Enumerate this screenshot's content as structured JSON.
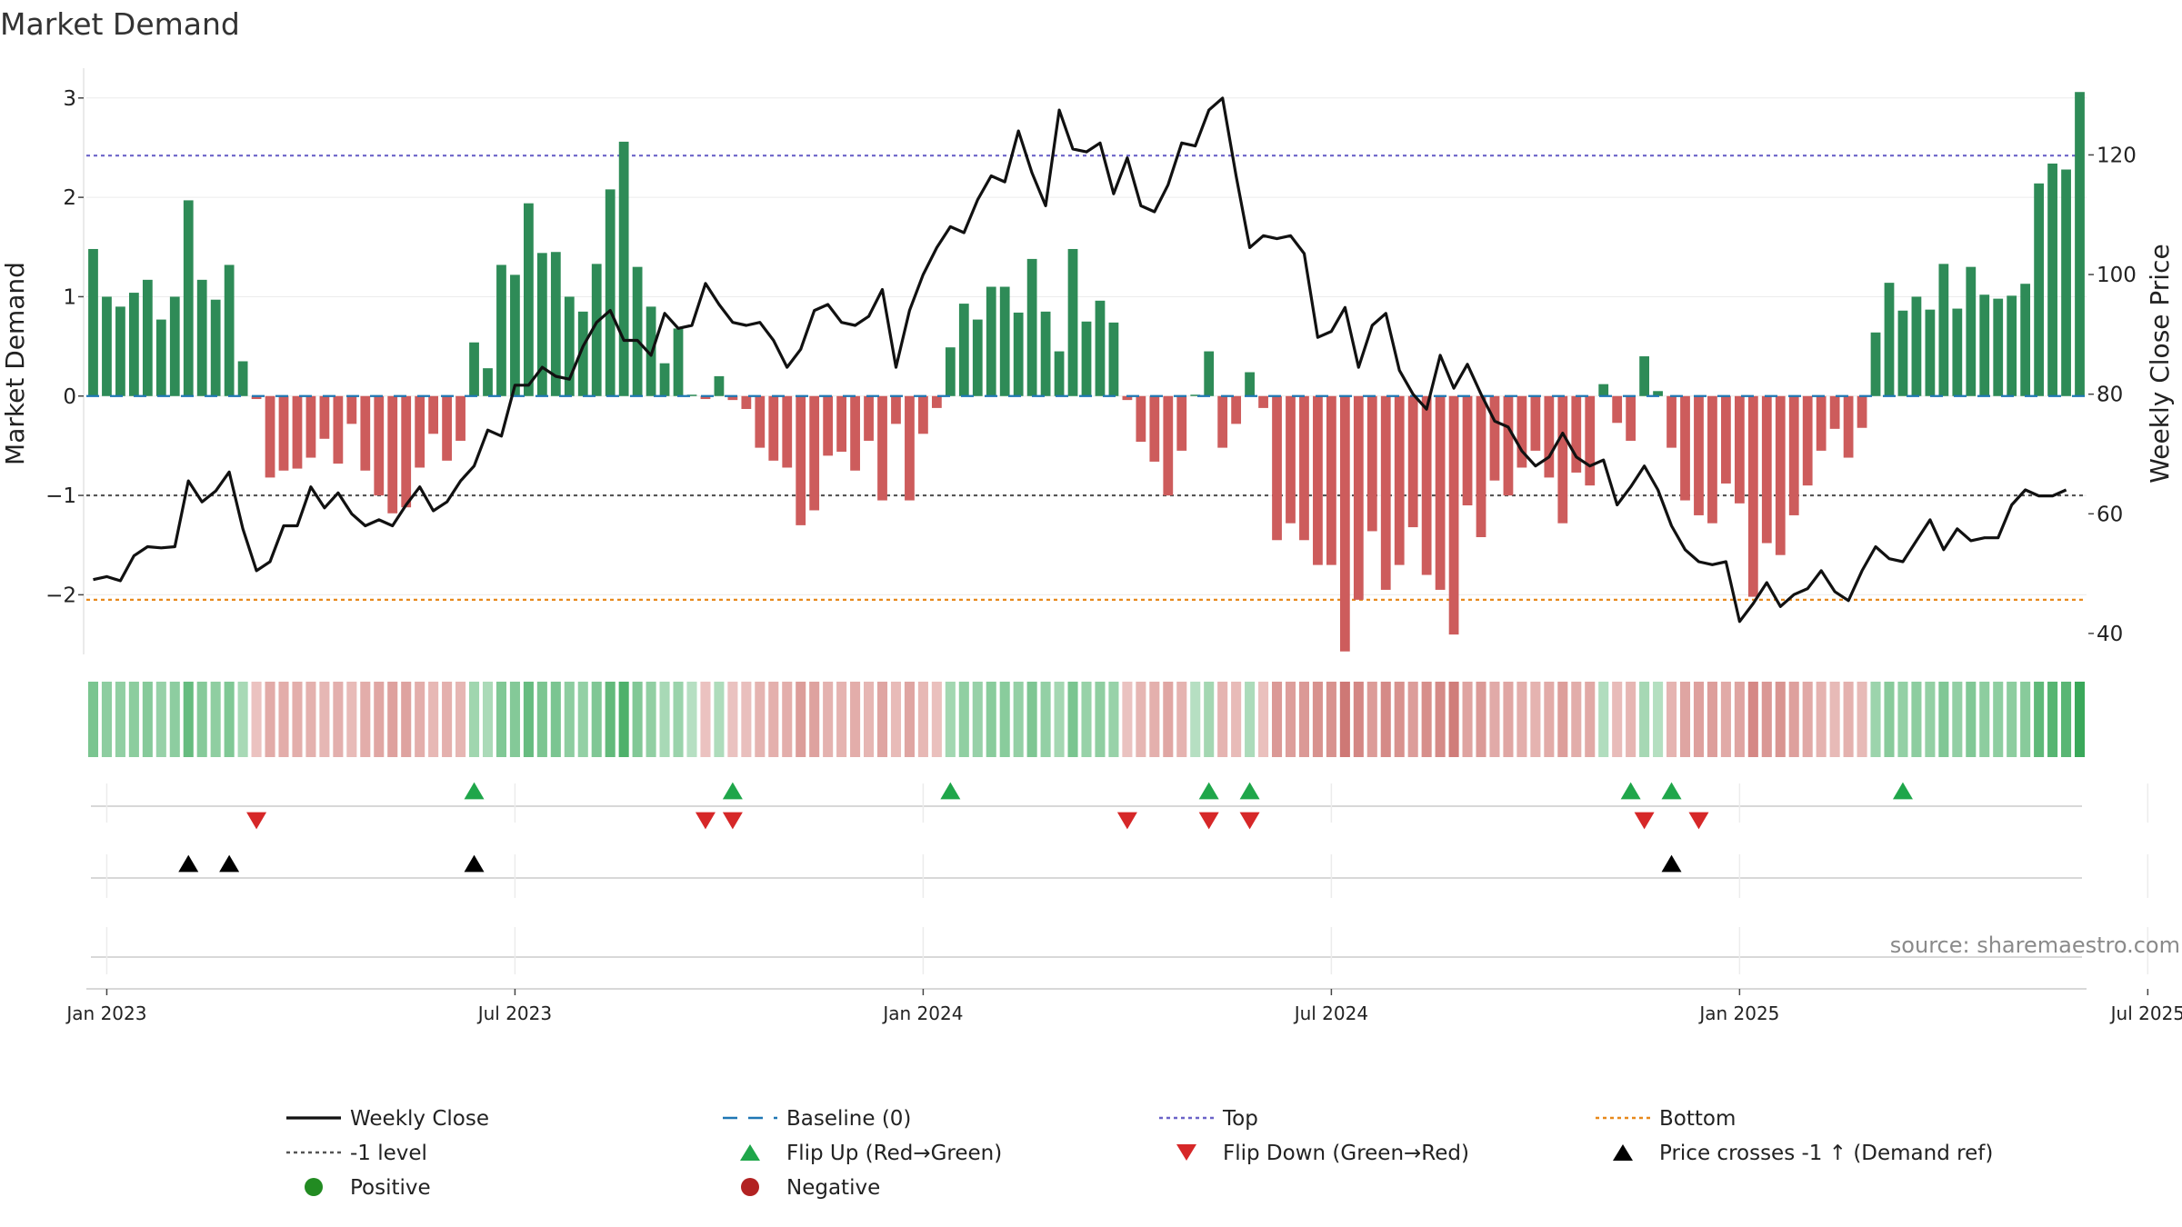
{
  "title": "Market Demand",
  "source": "source: sharemaestro.com",
  "colors": {
    "positive": "#2e8b57",
    "negative": "#cd5c5c",
    "price": "#111111",
    "baseline": "#1f77b4",
    "top": "#6b63c8",
    "bottom": "#e8891c",
    "level": "#555555",
    "flip_up": "#1fa64a",
    "flip_down": "#d62728",
    "cross": "#000000",
    "legend_positive": "#228b22",
    "legend_negative": "#b22222"
  },
  "chart_data": {
    "type": "bar",
    "title": "Market Demand",
    "ylabel": "Market Demand",
    "y2label": "Weekly Close Price",
    "ylim": [
      -2.6,
      3.3
    ],
    "y2lim": [
      36.5,
      134.5
    ],
    "yticks": [
      "3",
      "2",
      "1",
      "0",
      "−1",
      "−2"
    ],
    "ytick_values": [
      3,
      2,
      1,
      0,
      -1,
      -2
    ],
    "y2ticks": [
      "120",
      "100",
      "80",
      "60",
      "40"
    ],
    "y2tick_values": [
      120,
      100,
      80,
      60,
      40
    ],
    "xticks": [
      "Jan 2023",
      "Jul 2023",
      "Jan 2024",
      "Jul 2024",
      "Jan 2025",
      "Jul 2025"
    ],
    "xtick_weeks": [
      1.5,
      31.5,
      61.5,
      91.5,
      121.5,
      151.5
    ],
    "reference_lines": {
      "top": 2.42,
      "minus1": -1.0,
      "bottom": -2.05,
      "baseline": 0
    },
    "demand": [
      1.48,
      1.0,
      0.9,
      1.04,
      1.17,
      0.77,
      1.0,
      1.97,
      1.17,
      0.97,
      1.32,
      0.35,
      -0.03,
      -0.82,
      -0.75,
      -0.73,
      -0.62,
      -0.43,
      -0.68,
      -0.28,
      -0.75,
      -1.0,
      -1.18,
      -1.12,
      -0.72,
      -0.38,
      -0.65,
      -0.45,
      0.54,
      0.28,
      1.32,
      1.22,
      1.94,
      1.44,
      1.45,
      1.0,
      0.85,
      1.33,
      2.08,
      2.56,
      1.3,
      0.9,
      0.33,
      0.68,
      0.0,
      -0.03,
      0.2,
      -0.04,
      -0.13,
      -0.52,
      -0.65,
      -0.72,
      -1.3,
      -1.15,
      -0.6,
      -0.56,
      -0.75,
      -0.45,
      -1.05,
      -0.28,
      -1.05,
      -0.38,
      -0.12,
      0.49,
      0.93,
      0.77,
      1.1,
      1.1,
      0.84,
      1.38,
      0.85,
      0.45,
      1.48,
      0.75,
      0.96,
      0.74,
      -0.04,
      -0.46,
      -0.66,
      -1.0,
      -0.55,
      0.0,
      0.45,
      -0.52,
      -0.28,
      0.24,
      -0.12,
      -1.45,
      -1.28,
      -1.45,
      -1.7,
      -1.7,
      -2.57,
      -2.05,
      -1.36,
      -1.95,
      -1.7,
      -1.32,
      -1.8,
      -1.95,
      -2.4,
      -1.1,
      -1.42,
      -0.85,
      -1.0,
      -0.72,
      -0.55,
      -0.82,
      -1.28,
      -0.77,
      -0.9,
      0.12,
      -0.27,
      -0.45,
      0.4,
      0.05,
      -0.52,
      -1.05,
      -1.2,
      -1.28,
      -0.88,
      -1.08,
      -2.02,
      -1.48,
      -1.6,
      -1.2,
      -0.9,
      -0.55,
      -0.33,
      -0.62,
      -0.32,
      0.64,
      1.14,
      0.86,
      1.0,
      0.87,
      1.33,
      0.88,
      1.3,
      1.02,
      0.98,
      1.01,
      1.13,
      2.14,
      2.34,
      2.28,
      3.06
    ],
    "price": [
      49.0,
      49.5,
      48.8,
      53.0,
      54.5,
      54.3,
      54.5,
      65.5,
      62.0,
      63.8,
      67.0,
      57.5,
      50.5,
      52.0,
      58.0,
      58.0,
      64.5,
      61.0,
      63.5,
      60.0,
      58.0,
      59.0,
      58.0,
      61.5,
      64.5,
      60.5,
      62.0,
      65.5,
      68.0,
      74.0,
      73.0,
      81.5,
      81.5,
      84.5,
      83.0,
      82.5,
      88.0,
      92.0,
      94.0,
      89.0,
      89.0,
      86.5,
      93.5,
      91.0,
      91.5,
      98.5,
      95.0,
      92.0,
      91.5,
      92.0,
      89.0,
      84.5,
      87.5,
      94.0,
      95.0,
      92.0,
      91.5,
      93.0,
      97.5,
      84.5,
      94.0,
      100.0,
      104.5,
      108.0,
      107.0,
      112.5,
      116.5,
      115.5,
      124.0,
      117.0,
      111.5,
      127.5,
      121.0,
      120.5,
      122.0,
      113.5,
      119.5,
      111.5,
      110.5,
      115.0,
      122.0,
      121.5,
      127.5,
      129.5,
      116.5,
      104.5,
      106.5,
      106.0,
      106.5,
      103.5,
      89.5,
      90.5,
      94.5,
      84.5,
      91.5,
      93.5,
      84.0,
      80.0,
      77.5,
      86.5,
      81.0,
      85.0,
      80.0,
      75.5,
      74.5,
      70.5,
      68.0,
      69.5,
      73.5,
      69.5,
      68.0,
      69.0,
      61.5,
      64.5,
      68.0,
      64.0,
      58.0,
      54.0,
      52.0,
      51.5,
      52.0,
      42.0,
      45.0,
      48.5,
      44.5,
      46.5,
      47.5,
      50.5,
      47.0,
      45.5,
      50.5,
      54.5,
      52.5,
      52.0,
      55.5,
      59.0,
      54.0,
      57.5,
      55.5,
      56.0,
      56.0,
      61.5,
      64.0,
      63.0,
      63.0,
      64.0
    ],
    "flip_up_weeks": [
      28,
      47,
      63,
      82,
      85,
      113,
      116,
      133
    ],
    "flip_down_weeks": [
      12,
      45,
      47,
      76,
      82,
      85,
      114,
      118
    ],
    "cross_weeks": [
      7,
      10,
      28,
      116
    ],
    "legend": [
      {
        "label": "Weekly Close",
        "kind": "line"
      },
      {
        "label": "Baseline (0)",
        "kind": "dash"
      },
      {
        "label": "Top",
        "kind": "dot"
      },
      {
        "label": "Bottom",
        "kind": "dot-orange"
      },
      {
        "label": "-1 level",
        "kind": "dot-gray"
      },
      {
        "label": "Flip Up (Red→Green)",
        "kind": "tri-up"
      },
      {
        "label": "Flip Down (Green→Red)",
        "kind": "tri-down"
      },
      {
        "label": "Price crosses -1 ↑ (Demand ref)",
        "kind": "tri-black"
      },
      {
        "label": "Positive",
        "kind": "circle-green"
      },
      {
        "label": "Negative",
        "kind": "circle-red"
      }
    ]
  }
}
